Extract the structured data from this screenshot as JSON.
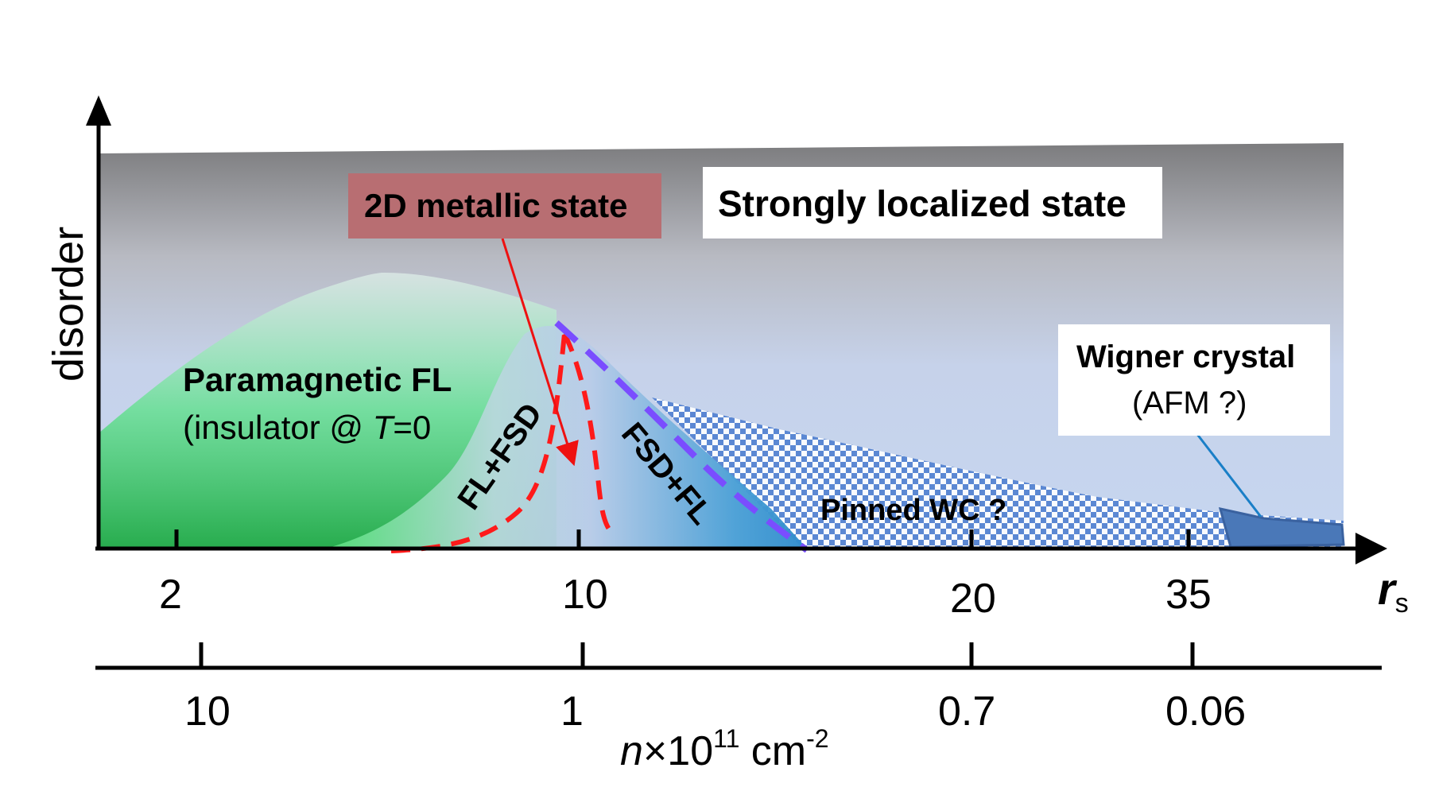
{
  "axes": {
    "y_label": "disorder",
    "x_label": "r",
    "x_label_sub": "s",
    "rs_ticks": [
      "2",
      "10",
      "20",
      "35"
    ],
    "n_ticks": [
      "10",
      "1",
      "0.7",
      "0.06"
    ],
    "n_label_prefix": "n",
    "n_label_times": "×10",
    "n_label_exp": "11",
    "n_label_unit": " cm",
    "n_label_unit_exp": "-2"
  },
  "regions": {
    "metallic": "2D metallic state",
    "localized": "Strongly localized state",
    "paramagnetic_title": "Paramagnetic FL",
    "paramagnetic_note_open": "(insulator @ ",
    "paramagnetic_note_T": "T",
    "paramagnetic_note_close": "=0",
    "fl_fsd": "FL+FSD",
    "fsd_fl": "FSD+FL",
    "pinned_wc": "Pinned WC ?",
    "wigner_title": "Wigner crystal",
    "wigner_note": "(AFM ?)"
  },
  "colors": {
    "metallic_box": "#b86e72",
    "dashed_red": "#ff1a1a",
    "dashed_violet": "#7a4dff",
    "arrow_red": "#ee1111",
    "wc_blue": "#4a78b8",
    "pointer_blue": "#1a7fc7"
  }
}
